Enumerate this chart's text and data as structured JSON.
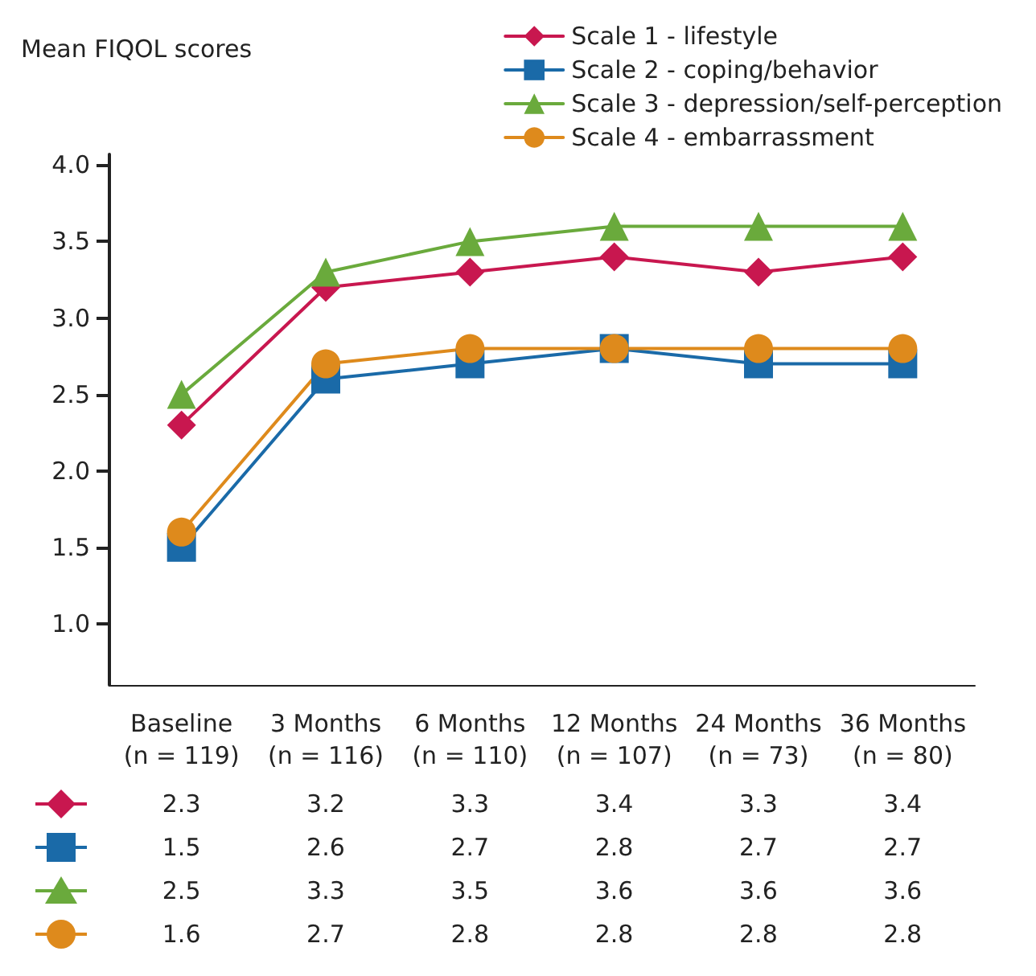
{
  "chart_data": {
    "type": "line",
    "ylabel": "Mean FIQOL scores",
    "categories": [
      "Baseline\n(n = 119)",
      "3 Months\n(n = 116)",
      "6 Months\n(n = 110)",
      "12 Months\n(n = 107)",
      "24 Months\n(n = 73)",
      "36 Months\n(n = 80)"
    ],
    "series": [
      {
        "name": "Scale 1 - lifestyle",
        "color": "#c8174f",
        "marker": "diamond",
        "values": [
          2.3,
          3.2,
          3.3,
          3.4,
          3.3,
          3.4
        ]
      },
      {
        "name": "Scale 2 - coping/behavior",
        "color": "#1a6aa8",
        "marker": "square",
        "values": [
          1.5,
          2.6,
          2.7,
          2.8,
          2.7,
          2.7
        ]
      },
      {
        "name": "Scale 3 - depression/self-perception",
        "color": "#6aaa3c",
        "marker": "triangle",
        "values": [
          2.5,
          3.3,
          3.5,
          3.6,
          3.6,
          3.6
        ]
      },
      {
        "name": "Scale 4 - embarrassment",
        "color": "#de8a1c",
        "marker": "circle",
        "values": [
          1.6,
          2.7,
          2.8,
          2.8,
          2.8,
          2.8
        ]
      }
    ],
    "ylim": [
      0.6,
      4.07
    ],
    "yticks": [
      {
        "value": 1,
        "label": "1.0"
      },
      {
        "value": 1.5,
        "label": "1.5"
      },
      {
        "value": 2,
        "label": "2.0"
      },
      {
        "value": 2.5,
        "label": "2.5"
      },
      {
        "value": 3,
        "label": "3.0"
      },
      {
        "value": 3.5,
        "label": "3.5"
      },
      {
        "value": 4,
        "label": "4.0"
      }
    ],
    "grid": false,
    "legend": "top right",
    "data_labels": true,
    "line_style": "solid"
  }
}
